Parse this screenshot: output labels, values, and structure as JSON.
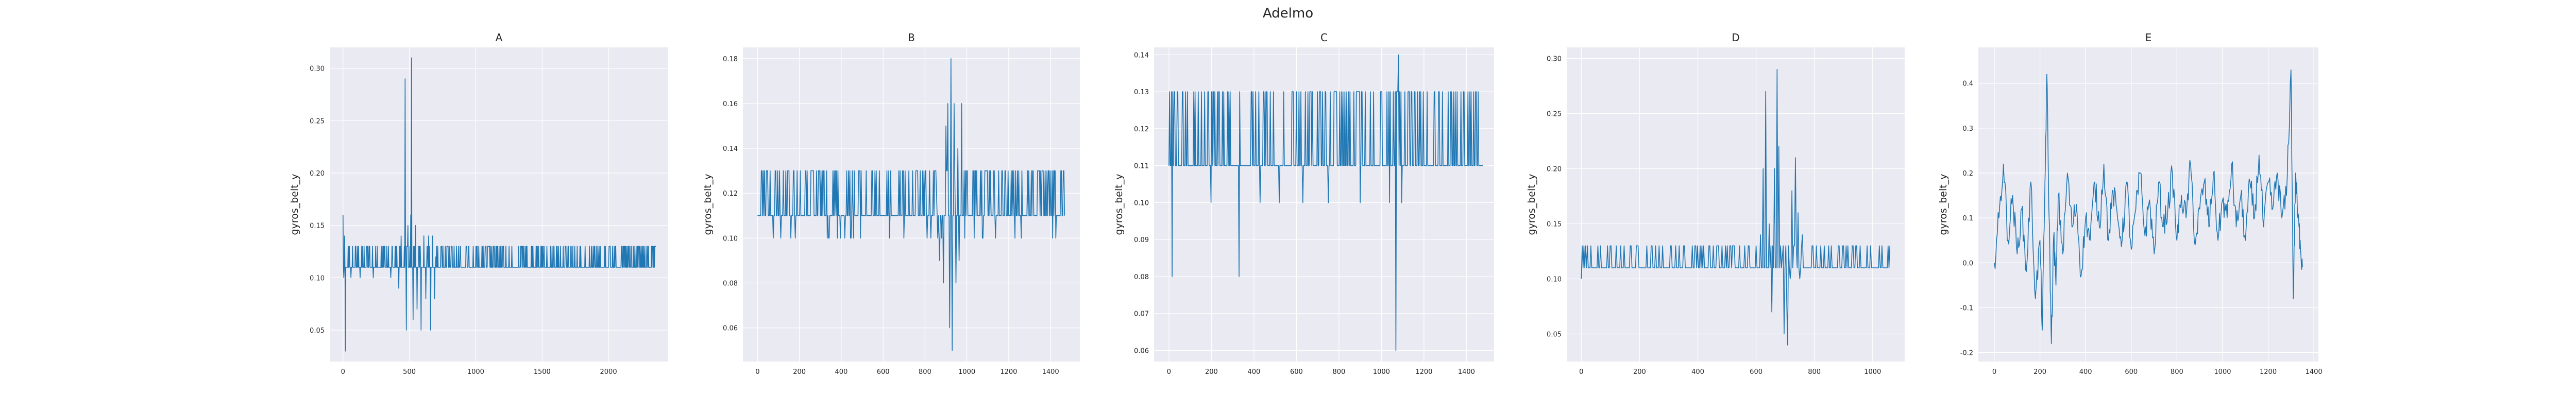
{
  "figure_title": "Adelmo",
  "colors": {
    "line": "#1f77b4",
    "panel_bg": "#eaeaf2",
    "grid": "#ffffff",
    "text": "#262626"
  },
  "chart_data": [
    {
      "type": "line",
      "title": "A",
      "xlabel": "",
      "ylabel": "gyros_belt_y",
      "xlim": [
        -100,
        2450
      ],
      "ylim": [
        0.02,
        0.32
      ],
      "xticks": [
        0,
        500,
        1000,
        1500,
        2000
      ],
      "yticks": [
        0.05,
        0.1,
        0.15,
        0.2,
        0.25,
        0.3
      ],
      "ytick_labels": [
        "0.05",
        "0.10",
        "0.15",
        "0.20",
        "0.25",
        "0.30"
      ],
      "grid": true,
      "n_points": 2360,
      "base_levels": [
        0.11,
        0.13
      ],
      "spikes": [
        {
          "x": 0,
          "y": 0.16
        },
        {
          "x": 8,
          "y": 0.1
        },
        {
          "x": 12,
          "y": 0.14
        },
        {
          "x": 18,
          "y": 0.03
        },
        {
          "x": 40,
          "y": 0.13
        },
        {
          "x": 60,
          "y": 0.1
        },
        {
          "x": 110,
          "y": 0.13
        },
        {
          "x": 130,
          "y": 0.1
        },
        {
          "x": 200,
          "y": 0.13
        },
        {
          "x": 230,
          "y": 0.1
        },
        {
          "x": 300,
          "y": 0.13
        },
        {
          "x": 360,
          "y": 0.1
        },
        {
          "x": 395,
          "y": 0.13
        },
        {
          "x": 420,
          "y": 0.09
        },
        {
          "x": 440,
          "y": 0.14
        },
        {
          "x": 470,
          "y": 0.29
        },
        {
          "x": 478,
          "y": 0.05
        },
        {
          "x": 490,
          "y": 0.15
        },
        {
          "x": 500,
          "y": 0.11
        },
        {
          "x": 510,
          "y": 0.16
        },
        {
          "x": 518,
          "y": 0.31
        },
        {
          "x": 530,
          "y": 0.06
        },
        {
          "x": 548,
          "y": 0.15
        },
        {
          "x": 560,
          "y": 0.07
        },
        {
          "x": 575,
          "y": 0.13
        },
        {
          "x": 590,
          "y": 0.05
        },
        {
          "x": 610,
          "y": 0.14
        },
        {
          "x": 625,
          "y": 0.08
        },
        {
          "x": 645,
          "y": 0.14
        },
        {
          "x": 660,
          "y": 0.05
        },
        {
          "x": 675,
          "y": 0.14
        },
        {
          "x": 690,
          "y": 0.08
        },
        {
          "x": 700,
          "y": 0.12
        }
      ]
    },
    {
      "type": "line",
      "title": "B",
      "xlabel": "",
      "ylabel": "gyros_belt_y",
      "xlim": [
        -70,
        1540
      ],
      "ylim": [
        0.045,
        0.185
      ],
      "xticks": [
        0,
        200,
        400,
        600,
        800,
        1000,
        1200,
        1400
      ],
      "yticks": [
        0.06,
        0.08,
        0.1,
        0.12,
        0.14,
        0.16,
        0.18
      ],
      "ytick_labels": [
        "0.06",
        "0.08",
        "0.10",
        "0.12",
        "0.14",
        "0.16",
        "0.18"
      ],
      "grid": true,
      "n_points": 1470,
      "base_levels": [
        0.11,
        0.13
      ],
      "extra_levels": [
        0.1
      ],
      "spikes": [
        {
          "x": 830,
          "y": 0.1
        },
        {
          "x": 855,
          "y": 0.12
        },
        {
          "x": 870,
          "y": 0.09
        },
        {
          "x": 880,
          "y": 0.1
        },
        {
          "x": 890,
          "y": 0.08
        },
        {
          "x": 900,
          "y": 0.15
        },
        {
          "x": 910,
          "y": 0.16
        },
        {
          "x": 918,
          "y": 0.06
        },
        {
          "x": 925,
          "y": 0.18
        },
        {
          "x": 932,
          "y": 0.05
        },
        {
          "x": 940,
          "y": 0.16
        },
        {
          "x": 950,
          "y": 0.08
        },
        {
          "x": 958,
          "y": 0.14
        },
        {
          "x": 965,
          "y": 0.09
        },
        {
          "x": 975,
          "y": 0.16
        },
        {
          "x": 990,
          "y": 0.1
        },
        {
          "x": 1000,
          "y": 0.13
        }
      ]
    },
    {
      "type": "line",
      "title": "C",
      "xlabel": "",
      "ylabel": "gyros_belt_y",
      "xlim": [
        -70,
        1530
      ],
      "ylim": [
        0.057,
        0.142
      ],
      "xticks": [
        0,
        200,
        400,
        600,
        800,
        1000,
        1200,
        1400
      ],
      "yticks": [
        0.06,
        0.07,
        0.08,
        0.09,
        0.1,
        0.11,
        0.12,
        0.13,
        0.14
      ],
      "ytick_labels": [
        "0.06",
        "0.07",
        "0.08",
        "0.09",
        "0.10",
        "0.11",
        "0.12",
        "0.13",
        "0.14"
      ],
      "grid": true,
      "n_points": 1480,
      "base_levels": [
        0.11,
        0.13
      ],
      "spikes": [
        {
          "x": 5,
          "y": 0.13
        },
        {
          "x": 15,
          "y": 0.08
        },
        {
          "x": 25,
          "y": 0.13
        },
        {
          "x": 200,
          "y": 0.1
        },
        {
          "x": 330,
          "y": 0.08
        },
        {
          "x": 430,
          "y": 0.1
        },
        {
          "x": 520,
          "y": 0.1
        },
        {
          "x": 630,
          "y": 0.1
        },
        {
          "x": 750,
          "y": 0.1
        },
        {
          "x": 900,
          "y": 0.1
        },
        {
          "x": 1040,
          "y": 0.1
        },
        {
          "x": 1070,
          "y": 0.06
        },
        {
          "x": 1080,
          "y": 0.14
        },
        {
          "x": 1095,
          "y": 0.1
        }
      ]
    },
    {
      "type": "line",
      "title": "D",
      "xlabel": "",
      "ylabel": "gyros_belt_y",
      "xlim": [
        -50,
        1110
      ],
      "ylim": [
        0.025,
        0.31
      ],
      "xticks": [
        0,
        200,
        400,
        600,
        800,
        1000
      ],
      "yticks": [
        0.05,
        0.1,
        0.15,
        0.2,
        0.25,
        0.3
      ],
      "ytick_labels": [
        "0.05",
        "0.10",
        "0.15",
        "0.20",
        "0.25",
        "0.30"
      ],
      "grid": true,
      "n_points": 1060,
      "base_levels": [
        0.11,
        0.13
      ],
      "spikes": [
        {
          "x": 0,
          "y": 0.1
        },
        {
          "x": 580,
          "y": 0.11
        },
        {
          "x": 600,
          "y": 0.13
        },
        {
          "x": 615,
          "y": 0.14
        },
        {
          "x": 625,
          "y": 0.2
        },
        {
          "x": 635,
          "y": 0.27
        },
        {
          "x": 645,
          "y": 0.15
        },
        {
          "x": 655,
          "y": 0.07
        },
        {
          "x": 665,
          "y": 0.2
        },
        {
          "x": 672,
          "y": 0.29
        },
        {
          "x": 680,
          "y": 0.22
        },
        {
          "x": 690,
          "y": 0.12
        },
        {
          "x": 698,
          "y": 0.05
        },
        {
          "x": 705,
          "y": 0.08
        },
        {
          "x": 710,
          "y": 0.04
        },
        {
          "x": 718,
          "y": 0.1
        },
        {
          "x": 725,
          "y": 0.18
        },
        {
          "x": 735,
          "y": 0.21
        },
        {
          "x": 745,
          "y": 0.16
        },
        {
          "x": 752,
          "y": 0.1
        },
        {
          "x": 760,
          "y": 0.14
        },
        {
          "x": 770,
          "y": 0.11
        },
        {
          "x": 800,
          "y": 0.11
        },
        {
          "x": 860,
          "y": 0.13
        },
        {
          "x": 1000,
          "y": 0.11
        },
        {
          "x": 1055,
          "y": 0.13
        }
      ]
    },
    {
      "type": "line",
      "title": "E",
      "xlabel": "",
      "ylabel": "gyros_belt_y",
      "xlim": [
        -70,
        1420
      ],
      "ylim": [
        -0.22,
        0.48
      ],
      "xticks": [
        0,
        200,
        400,
        600,
        800,
        1000,
        1200,
        1400
      ],
      "yticks": [
        -0.2,
        -0.1,
        0.0,
        0.1,
        0.2,
        0.3,
        0.4
      ],
      "ytick_labels": [
        "-0.2",
        "-0.1",
        "0.0",
        "0.1",
        "0.2",
        "0.3",
        "0.4"
      ],
      "grid": true,
      "series": [
        {
          "x": [
            0,
            20,
            40,
            60,
            80,
            100,
            120,
            140,
            160,
            180,
            200,
            210,
            220,
            230,
            240,
            250,
            260,
            270,
            280,
            300,
            320,
            340,
            360,
            380,
            400,
            420,
            440,
            460,
            480,
            500,
            520,
            540,
            560,
            580,
            600,
            620,
            640,
            660,
            680,
            700,
            720,
            740,
            760,
            780,
            800,
            820,
            840,
            860,
            880,
            900,
            920,
            940,
            960,
            980,
            1000,
            1020,
            1040,
            1060,
            1080,
            1100,
            1120,
            1140,
            1160,
            1180,
            1200,
            1220,
            1240,
            1260,
            1280,
            1300,
            1310,
            1320,
            1330,
            1340,
            1350
          ],
          "y": [
            0.0,
            0.1,
            0.22,
            0.05,
            0.15,
            0.02,
            0.12,
            -0.02,
            0.18,
            -0.08,
            0.05,
            -0.15,
            0.12,
            0.42,
            0.1,
            -0.18,
            0.06,
            -0.05,
            0.15,
            0.02,
            0.2,
            0.08,
            0.13,
            -0.03,
            0.1,
            0.05,
            0.18,
            0.08,
            0.22,
            0.05,
            0.16,
            0.1,
            0.05,
            0.18,
            0.03,
            0.12,
            0.2,
            0.06,
            0.14,
            0.02,
            0.18,
            0.08,
            0.12,
            0.2,
            0.05,
            0.15,
            0.1,
            0.22,
            0.04,
            0.12,
            0.18,
            0.08,
            0.2,
            0.05,
            0.14,
            0.1,
            0.22,
            0.08,
            0.15,
            0.05,
            0.18,
            0.1,
            0.24,
            0.08,
            0.18,
            0.12,
            0.2,
            0.1,
            0.15,
            0.43,
            -0.08,
            0.2,
            0.1,
            0.05,
            -0.01
          ]
        }
      ]
    }
  ]
}
